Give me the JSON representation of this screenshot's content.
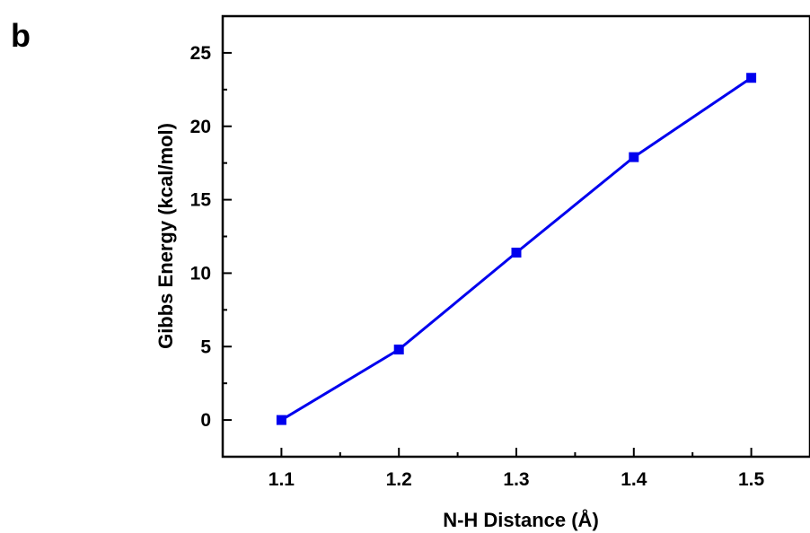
{
  "panel_label": "b",
  "chart_data": {
    "type": "line",
    "xlabel": "N-H Distance (Å)",
    "ylabel": "Gibbs Energy (kcal/mol)",
    "xlim": [
      1.05,
      1.55
    ],
    "ylim": [
      -2.5,
      27.5
    ],
    "x_ticks": [
      "1.1",
      "1.2",
      "1.3",
      "1.4",
      "1.5"
    ],
    "y_ticks": [
      "0",
      "5",
      "10",
      "15",
      "20",
      "25"
    ],
    "grid": false,
    "series": [
      {
        "color": "#0000ee",
        "marker": "square",
        "x": [
          1.1,
          1.2,
          1.3,
          1.4,
          1.5
        ],
        "y": [
          0.0,
          4.8,
          11.4,
          17.9,
          23.3
        ]
      }
    ]
  }
}
